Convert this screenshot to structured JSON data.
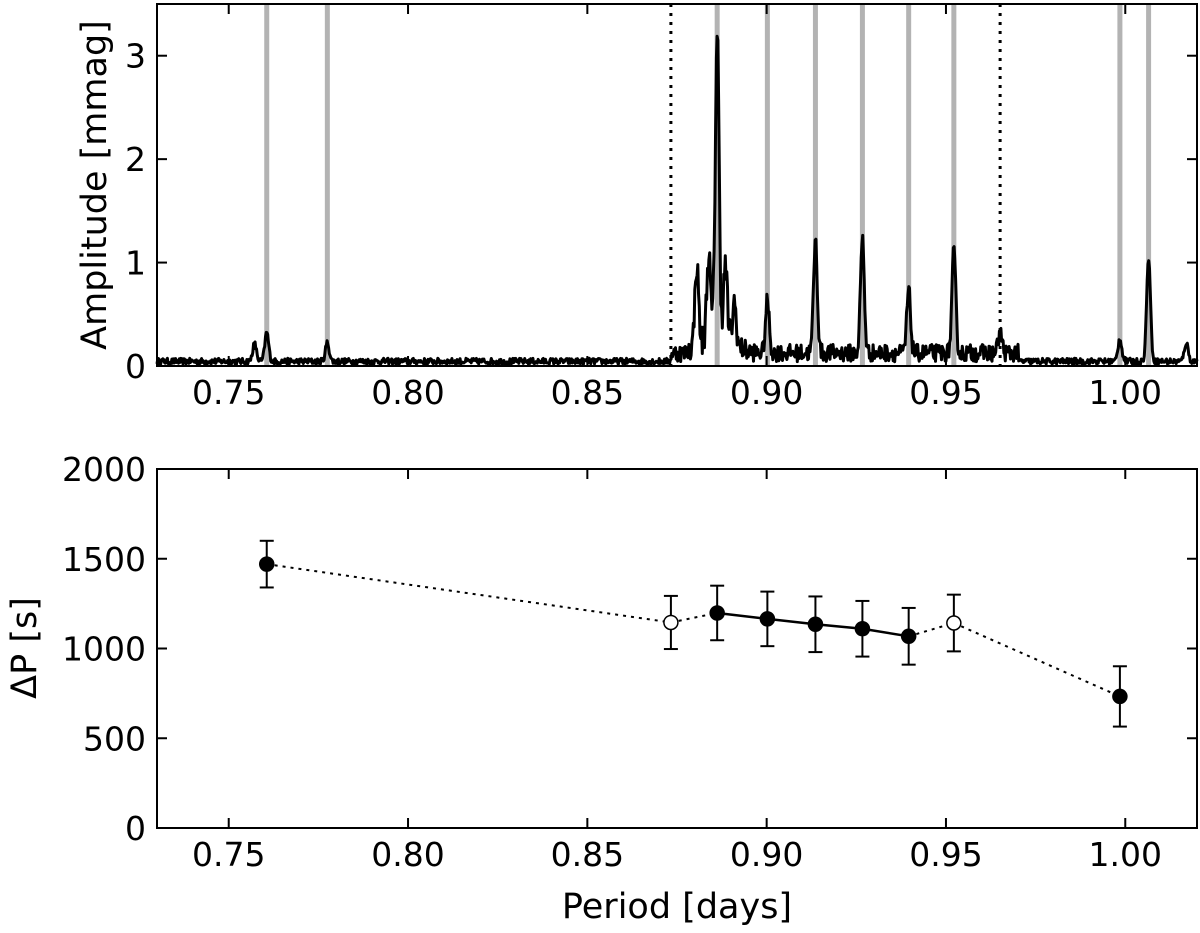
{
  "chart_data": [
    {
      "type": "line",
      "panel": "top",
      "title": "",
      "xlabel": "",
      "ylabel": "Amplitude [mmag]",
      "xlim": [
        0.73,
        1.02
      ],
      "ylim": [
        0,
        3.5
      ],
      "xticks": [
        0.75,
        0.8,
        0.85,
        0.9,
        0.95,
        1.0
      ],
      "xtick_labels": [
        "0.75",
        "0.80",
        "0.85",
        "0.90",
        "0.95",
        "1.00"
      ],
      "yticks": [
        0,
        1,
        2,
        3
      ],
      "ytick_labels": [
        "0",
        "1",
        "2",
        "3"
      ],
      "grid": false,
      "colors": {
        "spectrum": "#000000",
        "mode_marker": "#b3b3b3",
        "window_marker": "#000000"
      },
      "mode_marker_periods": [
        0.7606,
        0.7775,
        0.8862,
        0.9002,
        0.9136,
        0.9267,
        0.9396,
        0.9522,
        0.9985,
        1.0065
      ],
      "window_marker_periods": [
        0.8733,
        0.9651
      ],
      "peaks": [
        {
          "x": 0.7572,
          "y": 0.17
        },
        {
          "x": 0.7606,
          "y": 0.28
        },
        {
          "x": 0.7775,
          "y": 0.18
        },
        {
          "x": 0.8805,
          "y": 0.78
        },
        {
          "x": 0.8838,
          "y": 0.8
        },
        {
          "x": 0.8862,
          "y": 2.95
        },
        {
          "x": 0.8885,
          "y": 0.7
        },
        {
          "x": 0.891,
          "y": 0.4
        },
        {
          "x": 0.9002,
          "y": 0.5
        },
        {
          "x": 0.9136,
          "y": 1.08
        },
        {
          "x": 0.9267,
          "y": 1.1
        },
        {
          "x": 0.9396,
          "y": 0.6
        },
        {
          "x": 0.9522,
          "y": 0.97
        },
        {
          "x": 0.9651,
          "y": 0.2
        },
        {
          "x": 0.9985,
          "y": 0.22
        },
        {
          "x": 1.0065,
          "y": 1.0
        },
        {
          "x": 1.017,
          "y": 0.18
        }
      ],
      "noise_level": 0.05,
      "noise_level_high": 0.14
    },
    {
      "type": "scatter",
      "panel": "bottom",
      "title": "",
      "xlabel": "Period [days]",
      "ylabel": "ΔP [s]",
      "xlim": [
        0.73,
        1.02
      ],
      "ylim": [
        0,
        2000
      ],
      "xticks": [
        0.75,
        0.8,
        0.85,
        0.9,
        0.95,
        1.0
      ],
      "xtick_labels": [
        "0.75",
        "0.80",
        "0.85",
        "0.90",
        "0.95",
        "1.00"
      ],
      "yticks": [
        0,
        500,
        1000,
        1500,
        2000
      ],
      "ytick_labels": [
        "0",
        "500",
        "1000",
        "1500",
        "2000"
      ],
      "grid": false,
      "points": [
        {
          "x": 0.7606,
          "y": 1470,
          "err": 130,
          "filled": true
        },
        {
          "x": 0.8733,
          "y": 1145,
          "err": 148,
          "filled": false
        },
        {
          "x": 0.8862,
          "y": 1198,
          "err": 152,
          "filled": true
        },
        {
          "x": 0.9002,
          "y": 1165,
          "err": 152,
          "filled": true
        },
        {
          "x": 0.9136,
          "y": 1135,
          "err": 155,
          "filled": true
        },
        {
          "x": 0.9267,
          "y": 1110,
          "err": 155,
          "filled": true
        },
        {
          "x": 0.9396,
          "y": 1068,
          "err": 158,
          "filled": true
        },
        {
          "x": 0.9522,
          "y": 1142,
          "err": 158,
          "filled": false
        },
        {
          "x": 0.9985,
          "y": 733,
          "err": 168,
          "filled": true
        }
      ],
      "solid_segment_indices": [
        2,
        3,
        4,
        5,
        6
      ],
      "dotted_segment_groups": [
        [
          0,
          1
        ],
        [
          1,
          2
        ],
        [
          6,
          7
        ],
        [
          7,
          8
        ]
      ]
    }
  ]
}
